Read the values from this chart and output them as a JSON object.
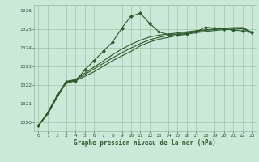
{
  "title": "Graphe pression niveau de la mer (hPa)",
  "bg_color": "#cce8d8",
  "grid_color": "#99bb99",
  "line_color": "#2d5a2d",
  "marker_color": "#2d5a2d",
  "xlim": [
    -0.5,
    23.5
  ],
  "ylim": [
    1019.5,
    1026.3
  ],
  "yticks": [
    1020,
    1021,
    1022,
    1023,
    1024,
    1025,
    1026
  ],
  "xticks": [
    0,
    1,
    2,
    3,
    4,
    5,
    6,
    7,
    8,
    9,
    10,
    11,
    12,
    13,
    14,
    15,
    16,
    17,
    18,
    19,
    20,
    21,
    22,
    23
  ],
  "series1": [
    1019.8,
    1020.5,
    1021.4,
    1022.15,
    1022.2,
    1022.8,
    1023.3,
    1023.8,
    1024.3,
    1025.05,
    1025.7,
    1025.85,
    1025.3,
    1024.85,
    1024.7,
    1024.7,
    1024.75,
    1024.85,
    1025.1,
    1025.05,
    1025.0,
    1024.95,
    1024.9,
    1024.8
  ],
  "series2": [
    1019.8,
    1020.4,
    1021.3,
    1022.1,
    1022.2,
    1022.45,
    1022.7,
    1023.0,
    1023.3,
    1023.55,
    1023.8,
    1024.1,
    1024.3,
    1024.45,
    1024.55,
    1024.65,
    1024.72,
    1024.8,
    1024.87,
    1024.92,
    1024.97,
    1025.0,
    1025.02,
    1024.8
  ],
  "series3": [
    1019.8,
    1020.45,
    1021.35,
    1022.15,
    1022.25,
    1022.55,
    1022.85,
    1023.15,
    1023.45,
    1023.72,
    1023.98,
    1024.22,
    1024.42,
    1024.55,
    1024.65,
    1024.73,
    1024.8,
    1024.87,
    1024.93,
    1024.98,
    1025.02,
    1025.05,
    1025.06,
    1024.82
  ],
  "series4": [
    1019.8,
    1020.48,
    1021.38,
    1022.18,
    1022.28,
    1022.62,
    1022.95,
    1023.28,
    1023.62,
    1023.92,
    1024.18,
    1024.4,
    1024.57,
    1024.67,
    1024.73,
    1024.79,
    1024.85,
    1024.91,
    1024.96,
    1025.0,
    1025.05,
    1025.07,
    1025.08,
    1024.83
  ]
}
